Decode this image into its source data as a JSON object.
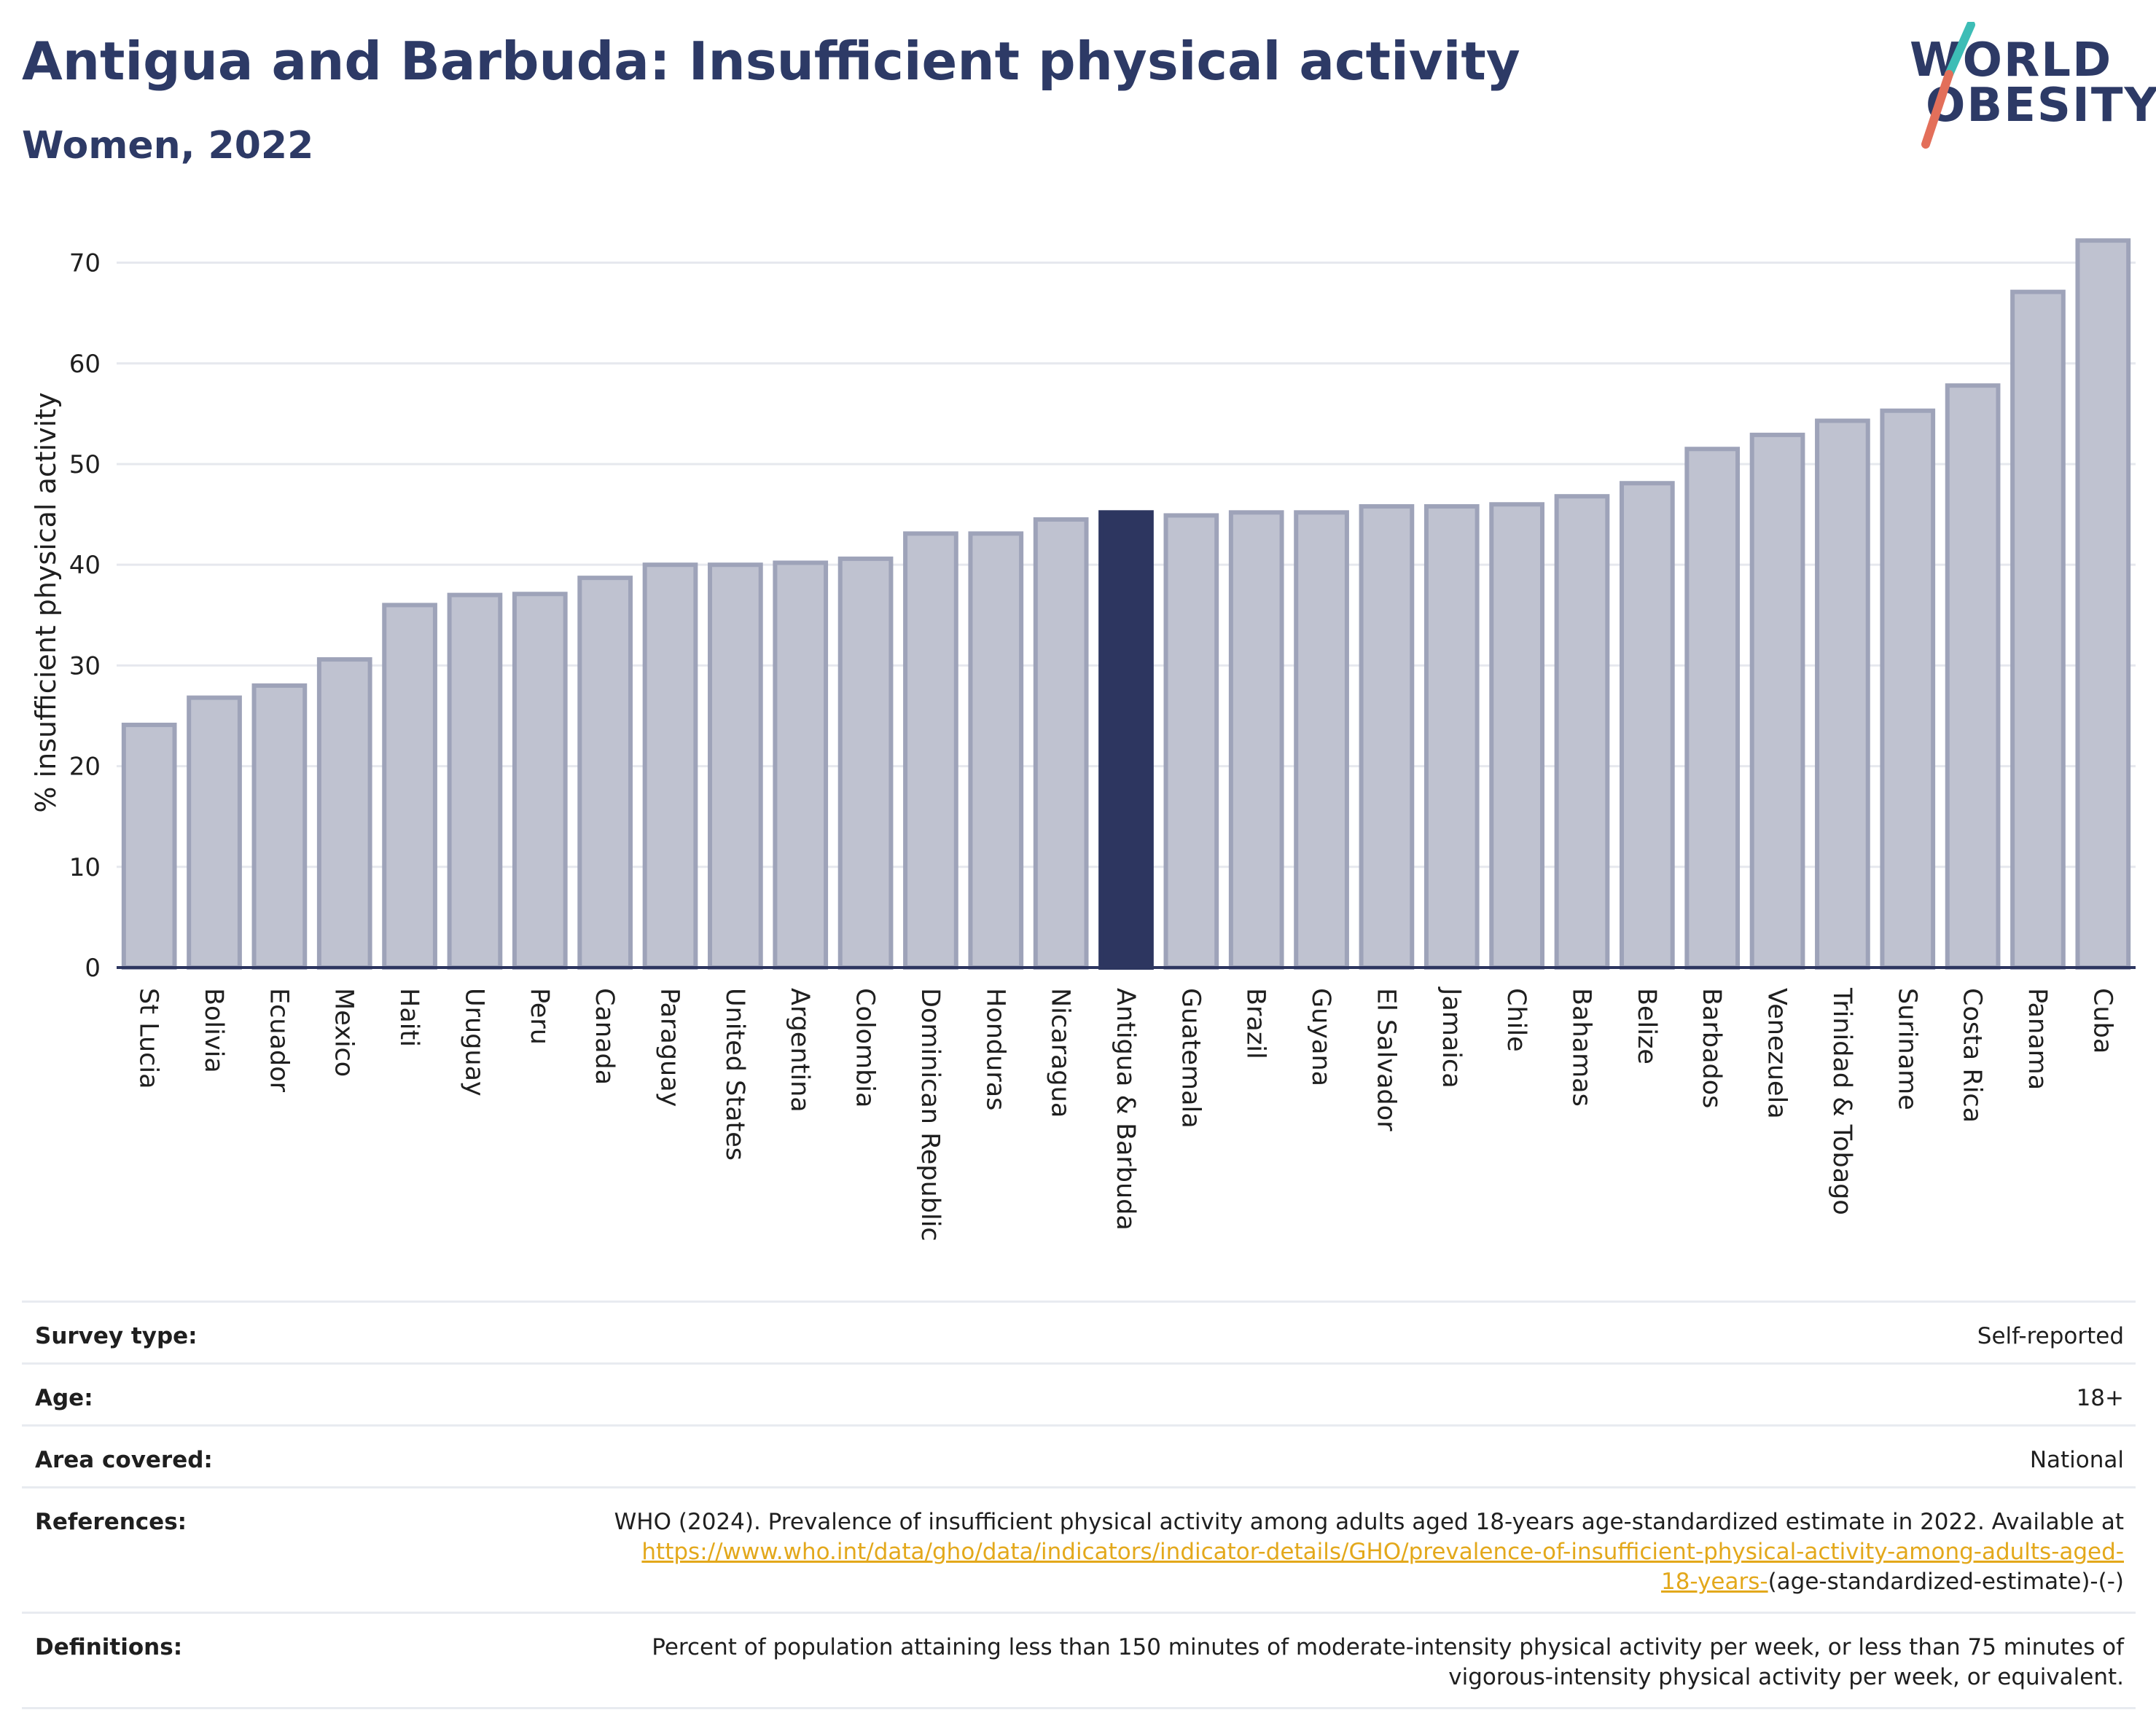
{
  "title": "Antigua and Barbuda: Insufficient physical activity",
  "subtitle": "Women, 2022",
  "logo": {
    "line1": "WORLD",
    "line2": "OBESITY"
  },
  "colors": {
    "highlight": "#2d3660",
    "bar_fill": "#bfc2d0",
    "bar_stroke": "#9ea3b9",
    "text": "#2d3a66",
    "link": "#e3a81b",
    "logo_teal": "#3dbdb6",
    "logo_coral": "#e36f5a"
  },
  "chart_data": {
    "type": "bar",
    "ylabel": "% insufficient physical activity",
    "xlabel": "",
    "ylim": [
      0,
      72.5
    ],
    "yticks": [
      0,
      10,
      20,
      30,
      40,
      50,
      60,
      70
    ],
    "grid": true,
    "highlight": "Antigua & Barbuda",
    "categories": [
      "St Lucia",
      "Bolivia",
      "Ecuador",
      "Mexico",
      "Haiti",
      "Uruguay",
      "Peru",
      "Canada",
      "Paraguay",
      "United States",
      "Argentina",
      "Colombia",
      "Dominican Republic",
      "Honduras",
      "Nicaragua",
      "Antigua & Barbuda",
      "Guatemala",
      "Brazil",
      "Guyana",
      "El Salvador",
      "Jamaica",
      "Chile",
      "Bahamas",
      "Belize",
      "Barbados",
      "Venezuela",
      "Trinidad & Tobago",
      "Suriname",
      "Costa Rica",
      "Panama",
      "Cuba"
    ],
    "values": [
      24.1,
      26.8,
      28.0,
      30.6,
      36.0,
      37.0,
      37.1,
      38.7,
      40.0,
      40.0,
      40.2,
      40.6,
      43.1,
      43.1,
      44.5,
      45.2,
      44.9,
      45.2,
      45.2,
      45.8,
      45.8,
      46.0,
      46.8,
      48.1,
      51.5,
      52.9,
      54.3,
      55.3,
      57.8,
      67.1,
      72.2
    ]
  },
  "info": {
    "survey_type": {
      "label": "Survey type:",
      "value": "Self-reported"
    },
    "age": {
      "label": "Age:",
      "value": "18+"
    },
    "area": {
      "label": "Area covered:",
      "value": "National"
    },
    "references": {
      "label": "References:",
      "text": "WHO (2024). Prevalence of insufficient physical activity among adults aged 18-years age-standardized estimate in 2022. Available at",
      "link_line1": "https://www.who.int/data/gho/data/indicators/indicator-details/GHO/prevalence-of-insufficient-physical-activity-among-adults-aged-",
      "link_line2": "18-years-",
      "suffix": "(age-standardized-estimate)-(-)"
    },
    "definitions": {
      "label": "Definitions:",
      "line1": "Percent of population attaining less than 150 minutes of moderate-intensity physical activity per week, or less than 75 minutes of",
      "line2": "vigorous-intensity physical activity per week, or equivalent."
    }
  }
}
